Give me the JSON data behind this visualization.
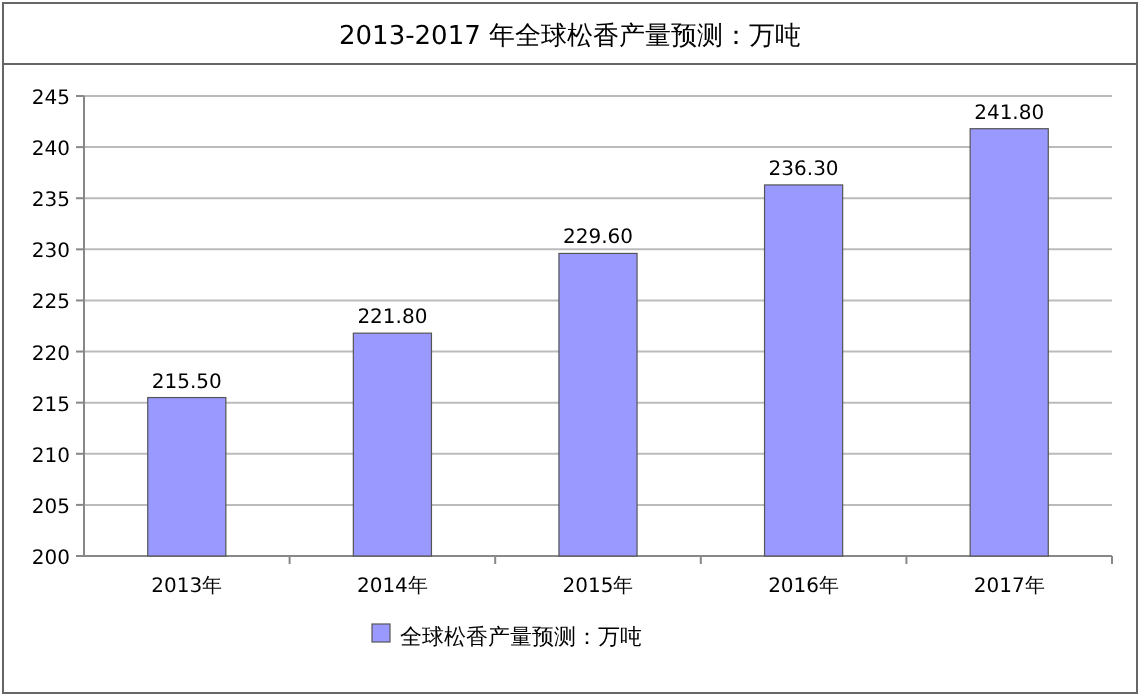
{
  "chart_data": {
    "type": "bar",
    "title": "2013-2017 年全球松香产量预测：万吨",
    "categories": [
      "2013年",
      "2014年",
      "2015年",
      "2016年",
      "2017年"
    ],
    "series": [
      {
        "name": "全球松香产量预测：万吨",
        "color": "#9999ff",
        "values": [
          215.5,
          221.8,
          229.6,
          236.3,
          241.8
        ],
        "value_labels": [
          "215.50",
          "221.80",
          "229.60",
          "236.30",
          "241.80"
        ]
      }
    ],
    "ylim": [
      200,
      245
    ],
    "yticks": [
      200,
      205,
      210,
      215,
      220,
      225,
      230,
      235,
      240,
      245
    ],
    "grid": "y",
    "legend": "bottom"
  }
}
